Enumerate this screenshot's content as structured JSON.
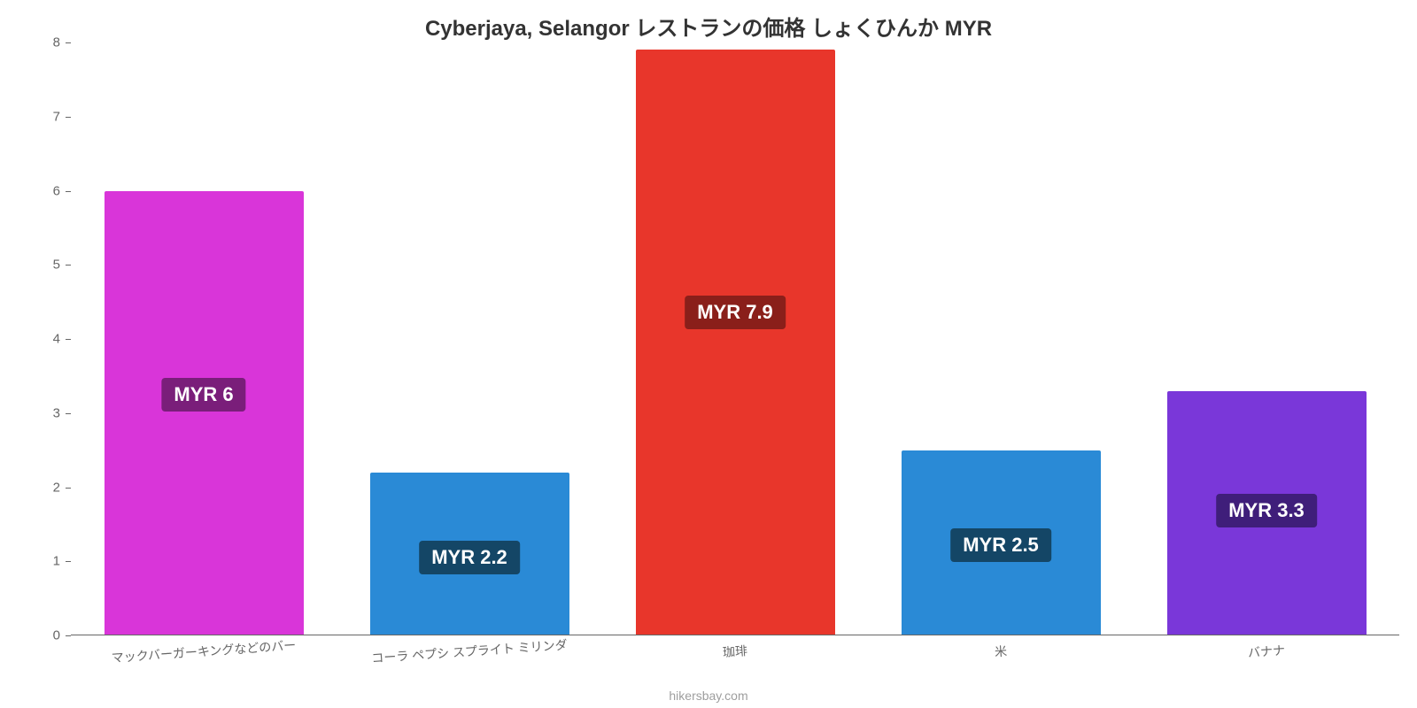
{
  "chart": {
    "type": "bar",
    "title": "Cyberjaya, Selangor レストランの価格 しょくひんか MYR",
    "title_fontsize": 24,
    "title_color": "#333333",
    "background_color": "#ffffff",
    "categories": [
      "マックバーガーキングなどのバー",
      "コーラ ペプシ スプライト ミリンダ",
      "珈琲",
      "米",
      "バナナ"
    ],
    "values": [
      6,
      2.2,
      7.9,
      2.5,
      3.3
    ],
    "value_labels": [
      "MYR 6",
      "MYR 2.2",
      "MYR 7.9",
      "MYR 2.5",
      "MYR 3.3"
    ],
    "bar_colors": [
      "#d935d9",
      "#2a8ad6",
      "#e8362b",
      "#2a8ad6",
      "#7a37d9"
    ],
    "label_bg_colors": [
      "#7a1e7a",
      "#144666",
      "#8a1f1a",
      "#144666",
      "#3f1e7a"
    ],
    "ylim": [
      0,
      8
    ],
    "yticks": [
      0,
      1,
      2,
      3,
      4,
      5,
      6,
      7,
      8
    ],
    "ytick_labels": [
      "0",
      "1",
      "2",
      "3",
      "4",
      "5",
      "6",
      "7",
      "8"
    ],
    "axis_line_color": "#666666",
    "tick_label_color": "#666666",
    "tick_fontsize": 15,
    "xlabel_fontsize": 14,
    "value_label_fontsize": 22,
    "bar_width_pct": 75,
    "attribution": "hikersbay.com",
    "attribution_fontsize": 14
  }
}
